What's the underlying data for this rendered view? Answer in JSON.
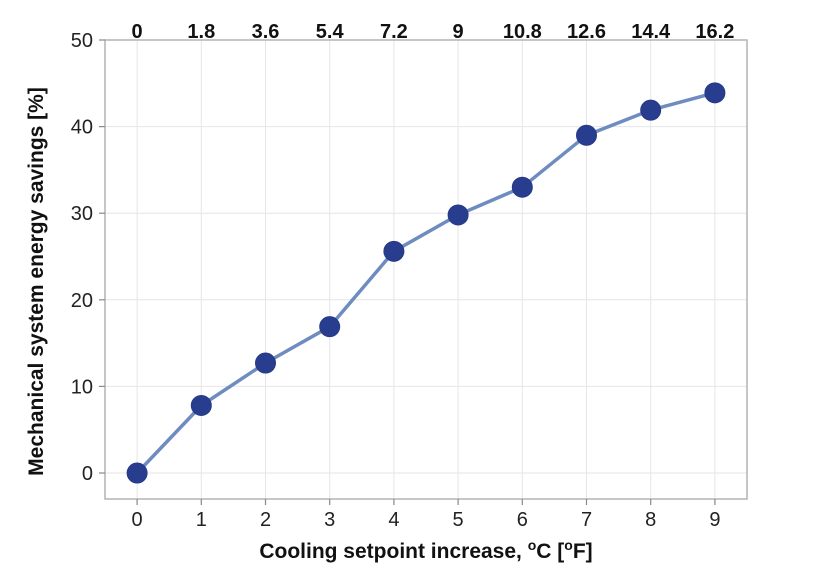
{
  "chart_data": {
    "type": "line",
    "x": [
      0,
      1,
      2,
      3,
      4,
      5,
      6,
      7,
      8,
      9
    ],
    "series": [
      {
        "values": [
          0,
          7.8,
          12.7,
          16.9,
          25.6,
          29.8,
          33.0,
          39.0,
          41.9,
          43.9
        ]
      }
    ],
    "xlabel_parts": {
      "lead": "Cooling setpoint increase, ",
      "sup1": "o",
      "unit1": "C [",
      "sup2": "o",
      "unit2": "F]"
    },
    "ylabel": "Mechanical system energy savings [%]",
    "xlim": [
      -0.5,
      9.5
    ],
    "ylim": [
      -3,
      50
    ],
    "yticks": [
      0,
      10,
      20,
      30,
      40,
      50
    ],
    "xticks": [
      0,
      1,
      2,
      3,
      4,
      5,
      6,
      7,
      8,
      9
    ],
    "secondary_xtick_labels": [
      "0",
      "1.8",
      "3.6",
      "5.4",
      "7.2",
      "9",
      "10.8",
      "12.6",
      "14.4",
      "16.2"
    ],
    "grid": true,
    "colors": {
      "line": "#6f8cc0",
      "point": "#293d8e"
    }
  }
}
